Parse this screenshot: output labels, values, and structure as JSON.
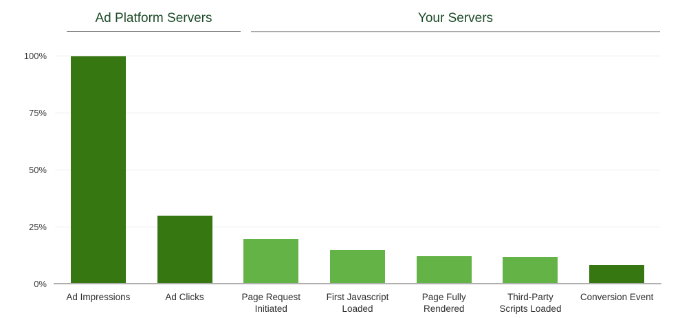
{
  "chart_data": {
    "type": "bar",
    "title": "",
    "categories": [
      "Ad Impressions",
      "Ad Clicks",
      "Page Request Initiated",
      "First Javascript Loaded",
      "Page Fully Rendered",
      "Third-Party Scripts Loaded",
      "Conversion Event"
    ],
    "category_lines": [
      [
        "Ad Impressions"
      ],
      [
        "Ad Clicks"
      ],
      [
        "Page Request",
        "Initiated"
      ],
      [
        "First Javascript",
        "Loaded"
      ],
      [
        "Page Fully",
        "Rendered"
      ],
      [
        "Third-Party",
        "Scripts Loaded"
      ],
      [
        "Conversion Event"
      ]
    ],
    "values": [
      100,
      30,
      20,
      15,
      12.5,
      12,
      8.5
    ],
    "unit": "%",
    "ylim": [
      0,
      100
    ],
    "y_ticks": [
      "0%",
      "25%",
      "50%",
      "75%",
      "100%"
    ],
    "grid": true,
    "bar_colors": [
      "#377711",
      "#377711",
      "#64b346",
      "#64b346",
      "#64b346",
      "#64b346",
      "#377711"
    ],
    "groups": [
      {
        "label": "Ad Platform Servers",
        "categories": [
          "Ad Impressions",
          "Ad Clicks"
        ]
      },
      {
        "label": "Your Servers",
        "categories": [
          "Page Request Initiated",
          "First Javascript Loaded",
          "Page Fully Rendered",
          "Third-Party Scripts Loaded",
          "Conversion Event"
        ]
      }
    ]
  },
  "style": {
    "header_text_color": "#1d4b27",
    "dark_bar_color": "#377711",
    "light_bar_color": "#64b346",
    "grid_color": "#ececec",
    "axis_line_color": "#b0b0b0",
    "header_underline_dark": "#4a4a4a",
    "header_underline_gray": "#ababab",
    "label_color": "#2d2d2d"
  }
}
